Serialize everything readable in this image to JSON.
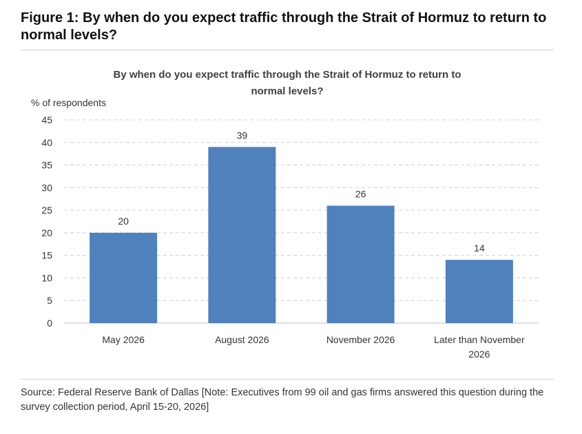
{
  "figure": {
    "title": "Figure 1: By when do you expect traffic through the Strait of Hormuz to return to normal levels?"
  },
  "chart_data": {
    "type": "bar",
    "title_lines": [
      "By when do you expect traffic through the Strait of Hormuz to return to",
      "normal levels?"
    ],
    "ylabel": "% of respondents",
    "xlabel": "",
    "ylim": [
      0,
      45
    ],
    "yticks": [
      0,
      5,
      10,
      15,
      20,
      25,
      30,
      35,
      40,
      45
    ],
    "grid": true,
    "categories": [
      [
        "May 2026"
      ],
      [
        "August 2026"
      ],
      [
        "November 2026"
      ],
      [
        "Later than November",
        "2026"
      ]
    ],
    "values": [
      20,
      39,
      26,
      14
    ],
    "data_labels": [
      "20",
      "39",
      "26",
      "14"
    ],
    "bar_color": "#4f81bd",
    "grid_color": "#d0d0d0",
    "axis_color": "#bfbfbf"
  },
  "source": {
    "text": "Source: Federal Reserve Bank of Dallas [Note: Executives from 99 oil and gas firms answered this question during the survey collection period, April 15-20, 2026]"
  }
}
